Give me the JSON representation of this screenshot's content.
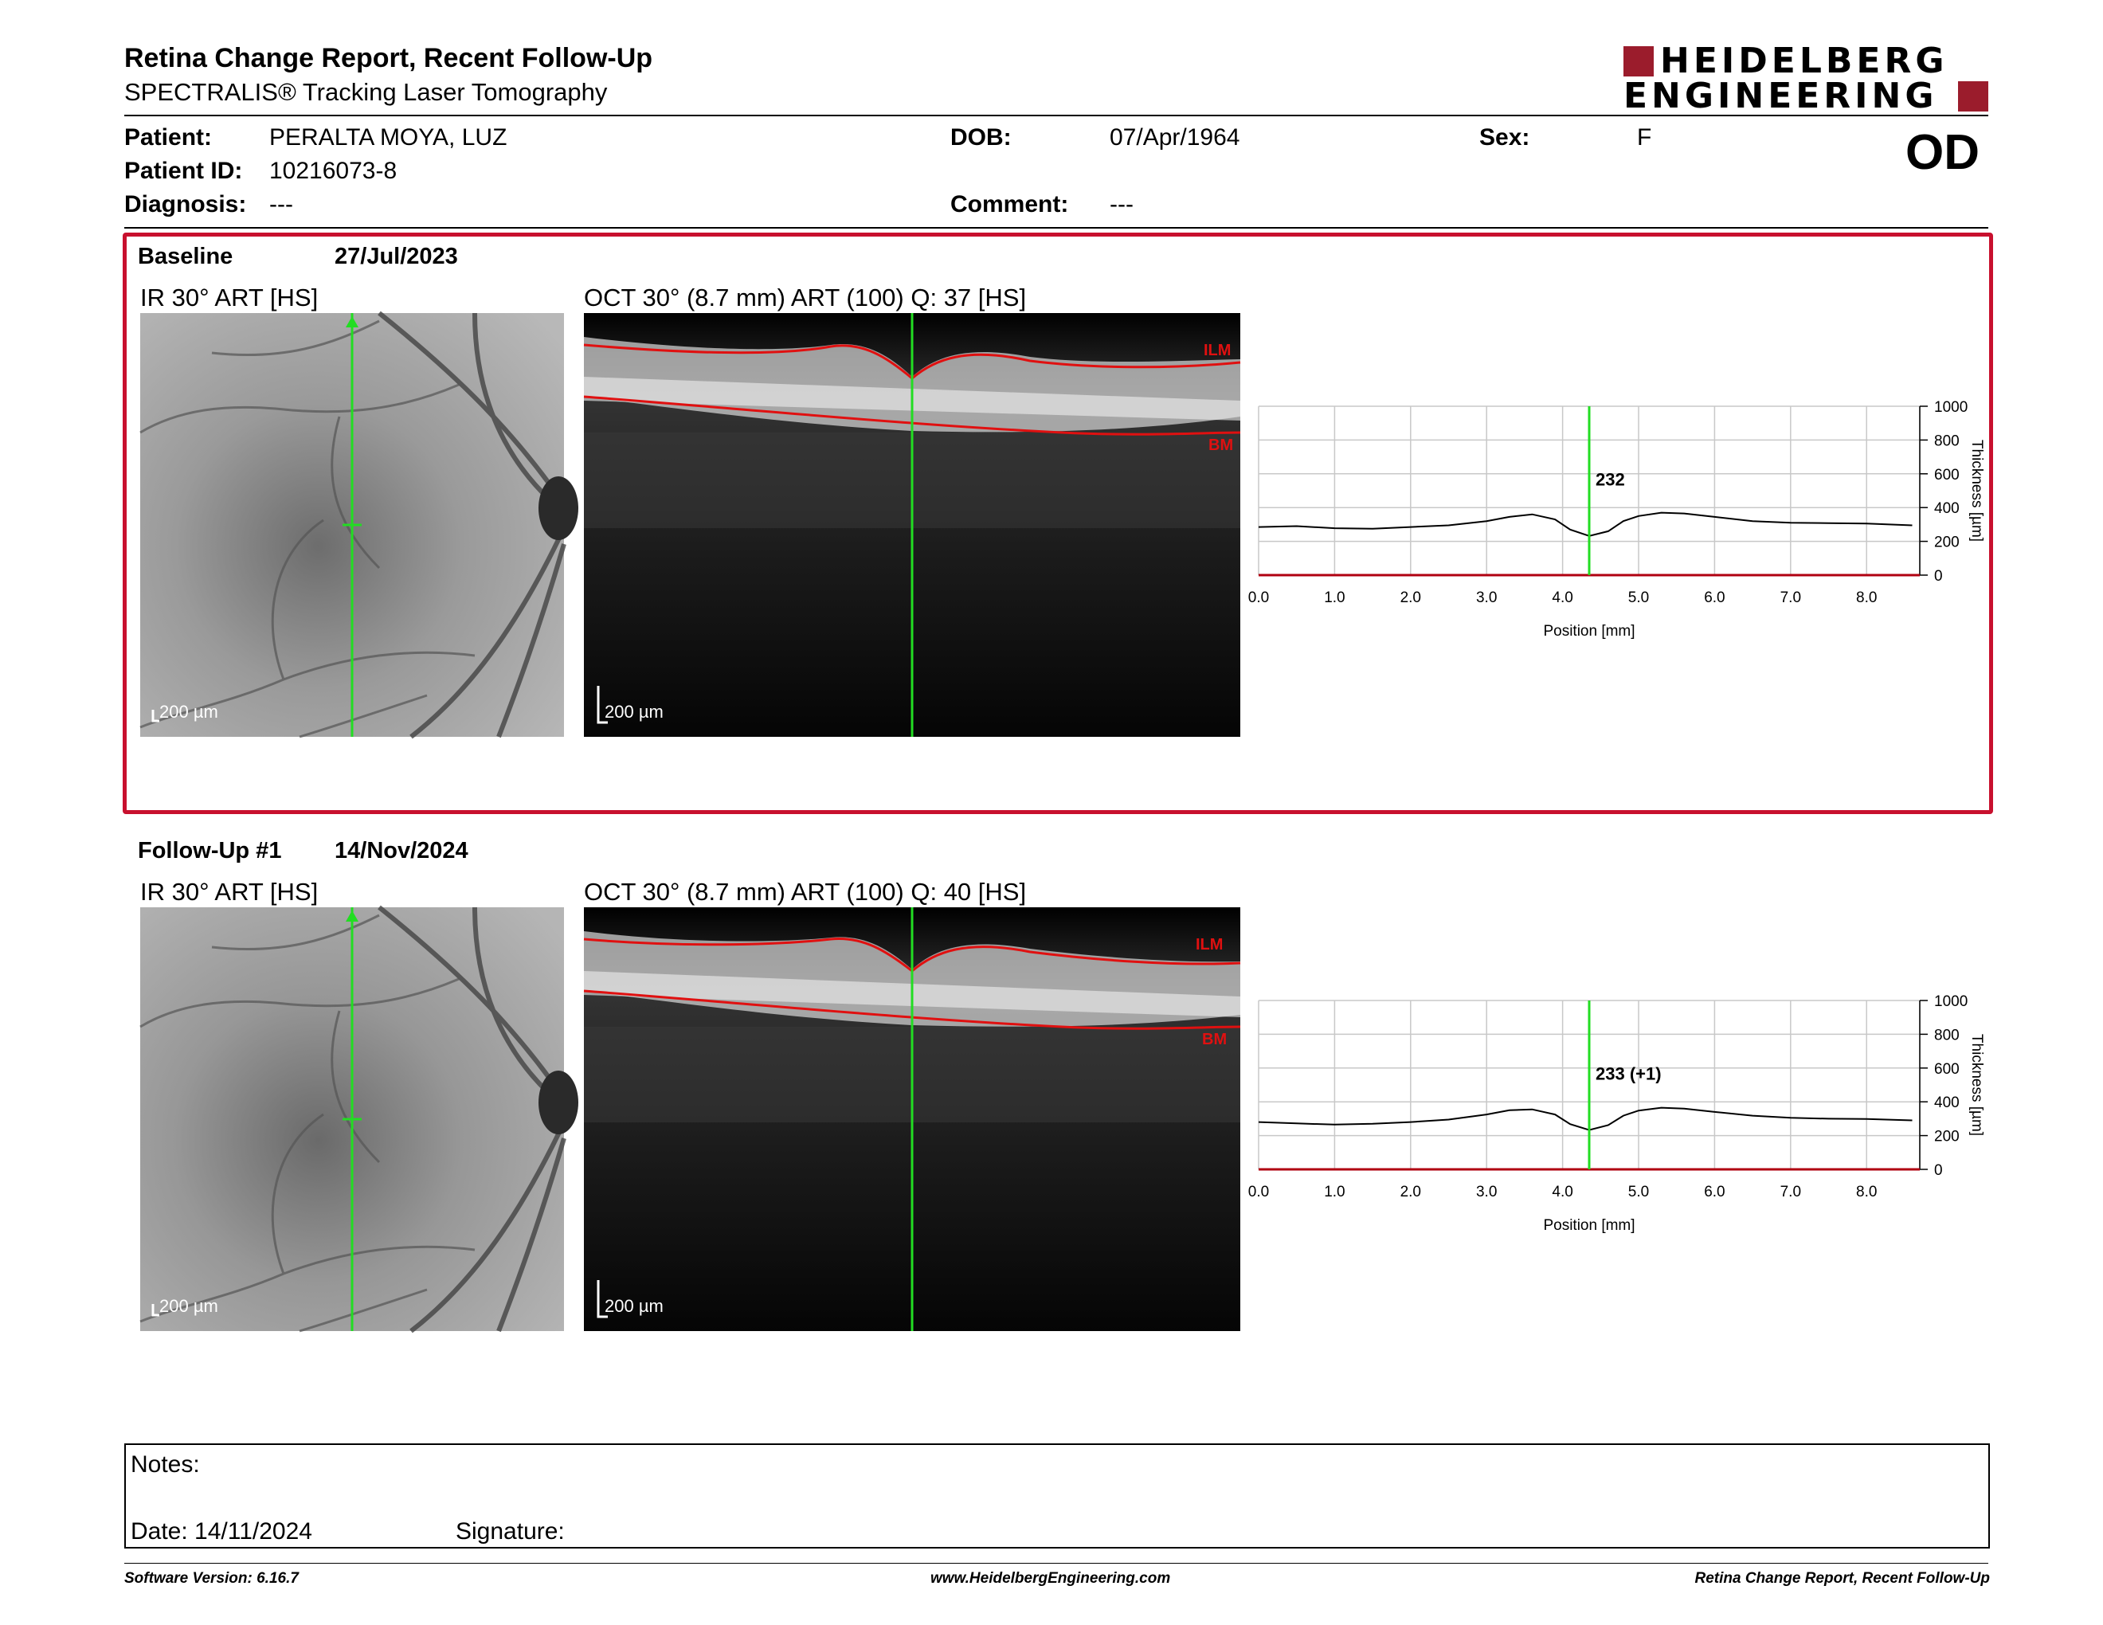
{
  "header": {
    "title": "Retina Change Report, Recent Follow-Up",
    "subtitle": "SPECTRALIS® Tracking Laser Tomography",
    "logo_line1": "HEIDELBERG",
    "logo_line2": "ENGINEERING",
    "eye": "OD"
  },
  "patient": {
    "patient_label": "Patient:",
    "patient_value": "PERALTA MOYA, LUZ",
    "id_label": "Patient ID:",
    "id_value": "10216073-8",
    "diagnosis_label": "Diagnosis:",
    "diagnosis_value": "---",
    "dob_label": "DOB:",
    "dob_value": "07/Apr/1964",
    "comment_label": "Comment:",
    "comment_value": "---",
    "sex_label": "Sex:",
    "sex_value": "F"
  },
  "baseline": {
    "label": "Baseline",
    "date": "27/Jul/2023",
    "ir_label": "IR 30° ART [HS]",
    "oct_label": "OCT 30° (8.7 mm) ART (100) Q: 37 [HS]",
    "scale_ir": "200 µm",
    "scale_oct": "200 µm",
    "ilm": "ILM",
    "bm": "BM"
  },
  "followup": {
    "label": "Follow-Up #1",
    "date": "14/Nov/2024",
    "ir_label": "IR 30° ART [HS]",
    "oct_label": "OCT 30° (8.7 mm) ART (100) Q: 40 [HS]",
    "scale_ir": "200 µm",
    "scale_oct": "200 µm",
    "ilm": "ILM",
    "bm": "BM"
  },
  "chart_data": [
    {
      "type": "line",
      "xlabel": "Position [mm]",
      "ylabel": "Thickness [µm]",
      "xlim": [
        0,
        8.7
      ],
      "ylim": [
        0,
        1000
      ],
      "xticks": [
        "0.0",
        "1.0",
        "2.0",
        "3.0",
        "4.0",
        "5.0",
        "6.0",
        "7.0",
        "8.0"
      ],
      "yticks": [
        "0",
        "200",
        "400",
        "600",
        "800",
        "1000"
      ],
      "cursor_x": 4.35,
      "annotation": "232",
      "x": [
        0.0,
        0.5,
        1.0,
        1.5,
        2.0,
        2.5,
        3.0,
        3.3,
        3.6,
        3.9,
        4.1,
        4.35,
        4.6,
        4.8,
        5.0,
        5.3,
        5.6,
        6.0,
        6.5,
        7.0,
        7.5,
        8.0,
        8.6
      ],
      "y": [
        285,
        290,
        278,
        275,
        285,
        295,
        320,
        345,
        360,
        330,
        270,
        232,
        260,
        320,
        350,
        370,
        365,
        345,
        320,
        310,
        308,
        305,
        295
      ],
      "grid": true
    },
    {
      "type": "line",
      "xlabel": "Position [mm]",
      "ylabel": "Thickness [µm]",
      "xlim": [
        0,
        8.7
      ],
      "ylim": [
        0,
        1000
      ],
      "xticks": [
        "0.0",
        "1.0",
        "2.0",
        "3.0",
        "4.0",
        "5.0",
        "6.0",
        "7.0",
        "8.0"
      ],
      "yticks": [
        "0",
        "200",
        "400",
        "600",
        "800",
        "1000"
      ],
      "cursor_x": 4.35,
      "annotation": "233 (+1)",
      "x": [
        0.0,
        0.5,
        1.0,
        1.5,
        2.0,
        2.5,
        3.0,
        3.3,
        3.6,
        3.9,
        4.1,
        4.35,
        4.6,
        4.8,
        5.0,
        5.3,
        5.6,
        6.0,
        6.5,
        7.0,
        7.5,
        8.0,
        8.6
      ],
      "y": [
        280,
        272,
        265,
        270,
        280,
        295,
        325,
        350,
        355,
        325,
        268,
        233,
        262,
        318,
        348,
        365,
        360,
        340,
        318,
        305,
        300,
        298,
        290
      ],
      "grid": true
    }
  ],
  "notes": {
    "notes_label": "Notes:",
    "date_label": "Date: 14/11/2024",
    "signature_label": "Signature:"
  },
  "footer": {
    "software": "Software Version: 6.16.7",
    "url": "www.HeidelbergEngineering.com",
    "report": "Retina Change Report, Recent Follow-Up"
  }
}
